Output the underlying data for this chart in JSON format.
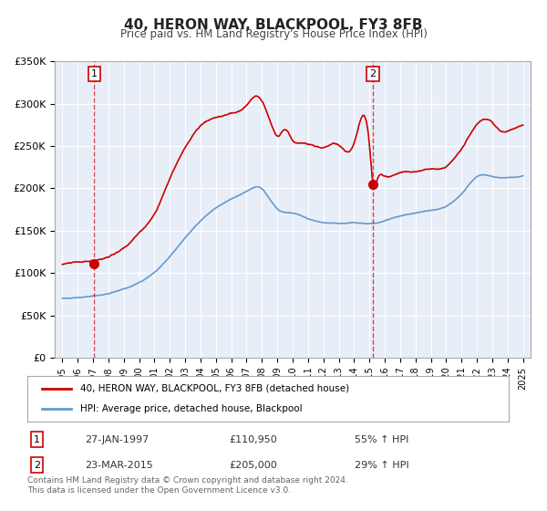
{
  "title": "40, HERON WAY, BLACKPOOL, FY3 8FB",
  "subtitle": "Price paid vs. HM Land Registry's House Price Index (HPI)",
  "legend_line1": "40, HERON WAY, BLACKPOOL, FY3 8FB (detached house)",
  "legend_line2": "HPI: Average price, detached house, Blackpool",
  "footnote1": "Contains HM Land Registry data © Crown copyright and database right 2024.",
  "footnote2": "This data is licensed under the Open Government Licence v3.0.",
  "marker1_date": "27-JAN-1997",
  "marker1_price": "£110,950",
  "marker1_hpi": "55% ↑ HPI",
  "marker1_label": "1",
  "marker2_date": "23-MAR-2015",
  "marker2_price": "£205,000",
  "marker2_hpi": "29% ↑ HPI",
  "marker2_label": "2",
  "marker1_x": 1997.08,
  "marker1_y": 110950,
  "marker2_x": 2015.23,
  "marker2_y": 205000,
  "ylim": [
    0,
    350000
  ],
  "xlim": [
    1994.5,
    2025.5
  ],
  "bg_color": "#e8eef8",
  "plot_bg_color": "#e8eef8",
  "red_color": "#cc0000",
  "blue_color": "#6699cc",
  "grid_color": "#ffffff",
  "title_fontsize": 11,
  "subtitle_fontsize": 9
}
